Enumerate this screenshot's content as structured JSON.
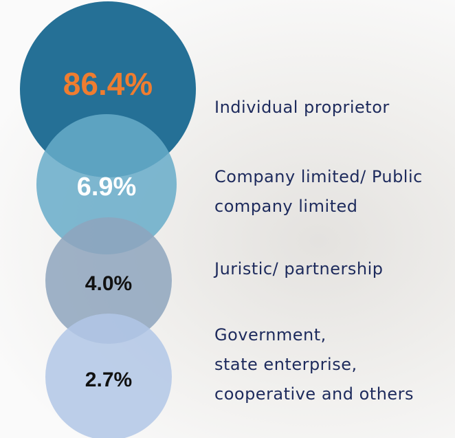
{
  "chart_data": {
    "type": "circles",
    "categories": [
      "Individual proprietor",
      "Company limited/ Public\ncompany limited",
      "Juristic/ partnership",
      "Government,\nstate enterprise,\ncooperative and others"
    ],
    "values": [
      86.4,
      6.9,
      4.0,
      2.7
    ],
    "value_labels": [
      "86.4%",
      "6.9%",
      "4.0%",
      "2.7%"
    ],
    "colors": [
      "#1e6b93",
      "#67abc9",
      "#8ea4bd",
      "#b2c7e6"
    ],
    "label_colors": [
      "#ef7d30",
      "#ffffff",
      "#111111",
      "#111111"
    ]
  }
}
